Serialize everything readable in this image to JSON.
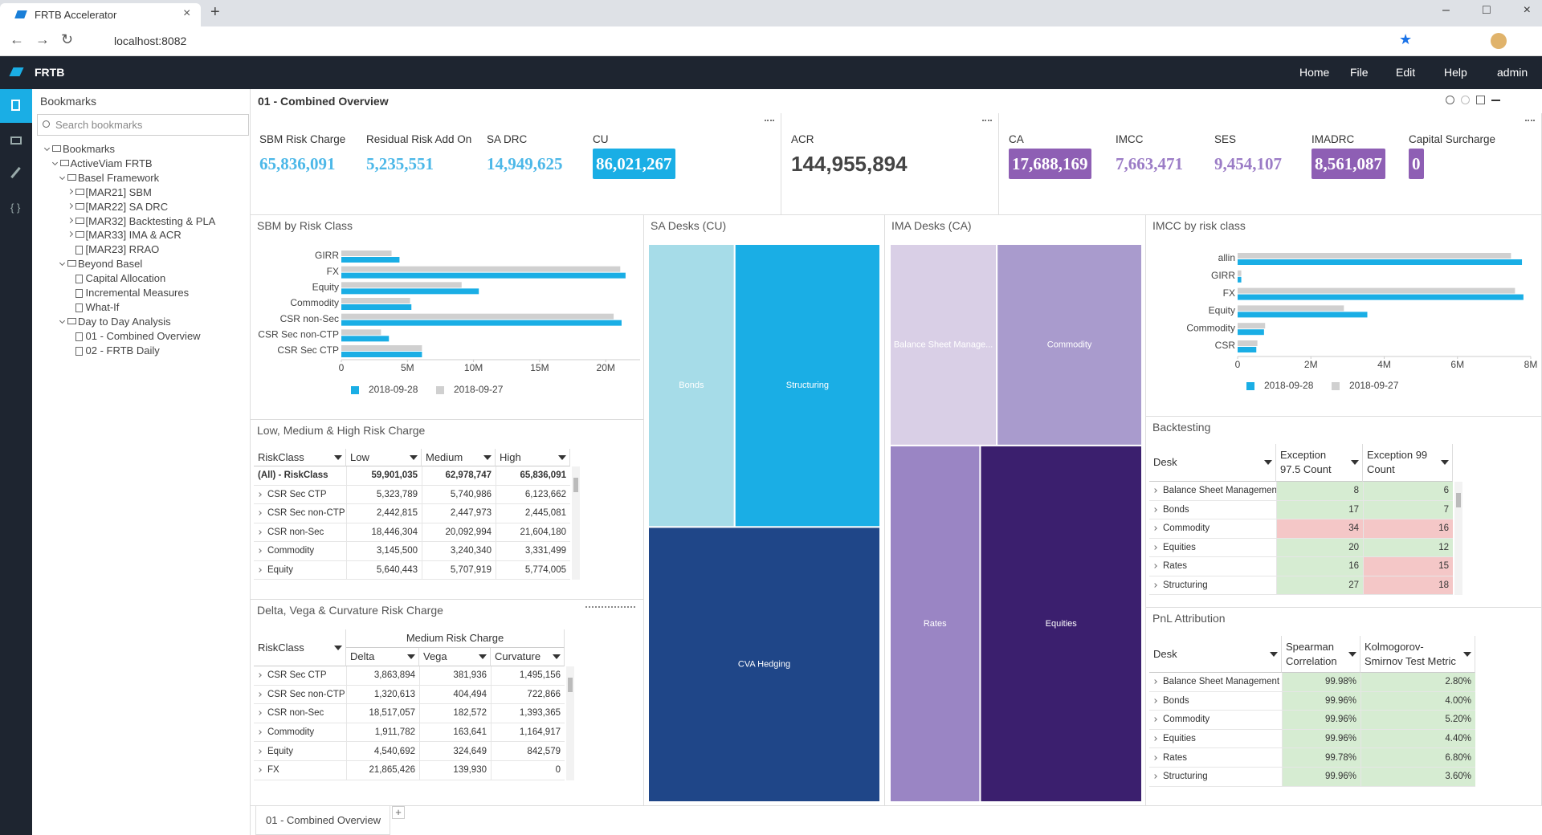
{
  "browser": {
    "tab_title": "FRTB Accelerator",
    "url": "localhost:8082"
  },
  "app": {
    "brand": "FRTB",
    "menu": [
      "Home",
      "File",
      "Edit",
      "Help",
      "admin"
    ]
  },
  "sidebar": {
    "title": "Bookmarks",
    "search_placeholder": "Search bookmarks",
    "tree": {
      "label": "Bookmarks",
      "children": [
        {
          "label": "ActiveViam FRTB",
          "children": [
            {
              "label": "Basel Framework",
              "children": [
                {
                  "label": "[MAR21] SBM",
                  "collapsed": true
                },
                {
                  "label": "[MAR22] SA DRC",
                  "collapsed": true
                },
                {
                  "label": "[MAR32] Backtesting & PLA",
                  "collapsed": true
                },
                {
                  "label": "[MAR33] IMA & ACR",
                  "collapsed": true
                },
                {
                  "label": "[MAR23] RRAO"
                }
              ]
            },
            {
              "label": "Beyond Basel",
              "children": [
                {
                  "label": "Capital Allocation"
                },
                {
                  "label": "Incremental Measures"
                },
                {
                  "label": "What-If"
                }
              ]
            },
            {
              "label": "Day to Day Analysis",
              "children": [
                {
                  "label": "01 - Combined Overview"
                },
                {
                  "label": "02 - FRTB Daily"
                }
              ]
            }
          ]
        }
      ]
    }
  },
  "dashboard": {
    "title": "01 - Combined Overview",
    "tab": "01 - Combined Overview"
  },
  "kpi_cards": [
    {
      "items": [
        {
          "label": "SBM Risk Charge",
          "value": "65,836,091",
          "color": "#4db8e8"
        },
        {
          "label": "Residual Risk Add On",
          "value": "5,235,551",
          "color": "#4db8e8"
        },
        {
          "label": "SA DRC",
          "value": "14,949,625",
          "color": "#4db8e8"
        },
        {
          "label": "CU",
          "value": "86,021,267",
          "color": "#1aaee5",
          "boxed": true
        }
      ]
    },
    {
      "items": [
        {
          "label": "ACR",
          "value": "144,955,894",
          "color": "#444444"
        }
      ]
    },
    {
      "items": [
        {
          "label": "CA",
          "value": "17,688,169",
          "color": "#8e5fb4",
          "boxed": true
        },
        {
          "label": "IMCC",
          "value": "7,663,471",
          "color": "#9b7cc6"
        },
        {
          "label": "SES",
          "value": "9,454,107",
          "color": "#9b7cc6"
        },
        {
          "label": "IMADRC",
          "value": "8,561,087",
          "color": "#8e5fb4",
          "boxed": true
        },
        {
          "label": "Capital Surcharge",
          "value": "0",
          "color": "#8e5fb4",
          "boxed": true
        }
      ]
    }
  ],
  "chart_data": [
    {
      "type": "bar",
      "orientation": "horizontal",
      "title": "SBM by Risk Class",
      "categories": [
        "GIRR",
        "FX",
        "Equity",
        "Commodity",
        "CSR non-Sec",
        "CSR Sec non-CTP",
        "CSR Sec CTP"
      ],
      "series": [
        {
          "name": "2018-09-28",
          "color": "#1aaee5",
          "values": [
            4400000,
            21500000,
            10400000,
            5300000,
            21200000,
            3600000,
            6100000
          ]
        },
        {
          "name": "2018-09-27",
          "color": "#d0d0d0",
          "values": [
            3800000,
            21100000,
            9100000,
            5200000,
            20600000,
            3000000,
            6100000
          ]
        }
      ],
      "xlim": [
        0,
        22600000
      ],
      "xticks": [
        0,
        {
          "value": 5000000,
          "label": "5M"
        },
        {
          "value": 10000000,
          "label": "10M"
        },
        {
          "value": 15000000,
          "label": "15M"
        },
        {
          "value": 20000000,
          "label": "20M"
        }
      ]
    },
    {
      "type": "treemap",
      "title": "SA Desks (CU)",
      "labels": [
        "Bonds",
        "Structuring",
        "CVA Hedging"
      ],
      "values": [
        16260000,
        27350000,
        42400000
      ],
      "colors": [
        "#a6dce8",
        "#1aaee5",
        "#1f4688"
      ]
    },
    {
      "type": "treemap",
      "title": "IMA Desks (CA)",
      "labels": [
        "Balance Sheet Manage...",
        "Commodity",
        "Rates",
        "Equities"
      ],
      "values": [
        2710000,
        3680000,
        4050000,
        7260000
      ],
      "colors": [
        "#d9cfe6",
        "#a99bcd",
        "#9a85c4",
        "#3b1f6e"
      ]
    },
    {
      "type": "bar",
      "orientation": "horizontal",
      "title": "IMCC by risk class",
      "categories": [
        "allin",
        "GIRR",
        "FX",
        "Equity",
        "Commodity",
        "CSR"
      ],
      "series": [
        {
          "name": "2018-09-28",
          "color": "#1aaee5",
          "values": [
            7760000,
            100000,
            7800000,
            3540000,
            720000,
            510000
          ]
        },
        {
          "name": "2018-09-27",
          "color": "#d0d0d0",
          "values": [
            7460000,
            100000,
            7570000,
            2900000,
            750000,
            540000
          ]
        }
      ],
      "xlim": [
        0,
        8000000
      ],
      "xticks": [
        0,
        {
          "value": 2000000,
          "label": "2M"
        },
        {
          "value": 4000000,
          "label": "4M"
        },
        {
          "value": 6000000,
          "label": "6M"
        },
        {
          "value": 8000000,
          "label": "8M"
        }
      ]
    }
  ],
  "tables": [
    {
      "title": "Low, Medium & High Risk Charge",
      "columns": [
        "RiskClass",
        "Low",
        "Medium",
        "High"
      ],
      "rows": [
        [
          "(All) - RiskClass",
          "59,901,035",
          "62,978,747",
          "65,836,091"
        ],
        [
          "CSR Sec CTP",
          "5,323,789",
          "5,740,986",
          "6,123,662"
        ],
        [
          "CSR Sec non-CTP",
          "2,442,815",
          "2,447,973",
          "2,445,081"
        ],
        [
          "CSR non-Sec",
          "18,446,304",
          "20,092,994",
          "21,604,180"
        ],
        [
          "Commodity",
          "3,145,500",
          "3,240,340",
          "3,331,499"
        ],
        [
          "Equity",
          "5,640,443",
          "5,707,919",
          "5,774,005"
        ]
      ]
    },
    {
      "title": "Delta, Vega & Curvature Risk Charge",
      "group_header": "Medium Risk Charge",
      "columns": [
        "RiskClass",
        "Delta",
        "Vega",
        "Curvature"
      ],
      "rows": [
        [
          "CSR Sec CTP",
          "3,863,894",
          "381,936",
          "1,495,156"
        ],
        [
          "CSR Sec non-CTP",
          "1,320,613",
          "404,494",
          "722,866"
        ],
        [
          "CSR non-Sec",
          "18,517,057",
          "182,572",
          "1,393,365"
        ],
        [
          "Commodity",
          "1,911,782",
          "163,641",
          "1,164,917"
        ],
        [
          "Equity",
          "4,540,692",
          "324,649",
          "842,579"
        ],
        [
          "FX",
          "21,865,426",
          "139,930",
          "0"
        ]
      ]
    },
    {
      "title": "Backtesting",
      "columns": [
        "Desk",
        "Exception 97.5 Count",
        "Exception 99 Count"
      ],
      "rows": [
        [
          "Balance Sheet Management",
          "8",
          "6"
        ],
        [
          "Bonds",
          "17",
          "7"
        ],
        [
          "Commodity",
          "34",
          "16"
        ],
        [
          "Equities",
          "20",
          "12"
        ],
        [
          "Rates",
          "16",
          "15"
        ],
        [
          "Structuring",
          "27",
          "18"
        ]
      ],
      "cell_colors": [
        [
          "#d6ecd2",
          "#d6ecd2"
        ],
        [
          "#d6ecd2",
          "#d6ecd2"
        ],
        [
          "#f4c7c7",
          "#f4c7c7"
        ],
        [
          "#d6ecd2",
          "#d6ecd2"
        ],
        [
          "#d6ecd2",
          "#f4c7c7"
        ],
        [
          "#d6ecd2",
          "#f4c7c7"
        ]
      ]
    },
    {
      "title": "PnL Attribution",
      "columns": [
        "Desk",
        "Spearman Correlation",
        "Kolmogorov-Smirnov Test Metric"
      ],
      "rows": [
        [
          "Balance Sheet Management",
          "99.98%",
          "2.80%"
        ],
        [
          "Bonds",
          "99.96%",
          "4.00%"
        ],
        [
          "Commodity",
          "99.96%",
          "5.20%"
        ],
        [
          "Equities",
          "99.96%",
          "4.40%"
        ],
        [
          "Rates",
          "99.78%",
          "6.80%"
        ],
        [
          "Structuring",
          "99.96%",
          "3.60%"
        ]
      ],
      "cell_colors": [
        [
          "#d6ecd2",
          "#d6ecd2"
        ],
        [
          "#d6ecd2",
          "#d6ecd2"
        ],
        [
          "#d6ecd2",
          "#d6ecd2"
        ],
        [
          "#d6ecd2",
          "#d6ecd2"
        ],
        [
          "#d6ecd2",
          "#d6ecd2"
        ],
        [
          "#d6ecd2",
          "#d6ecd2"
        ]
      ]
    }
  ]
}
